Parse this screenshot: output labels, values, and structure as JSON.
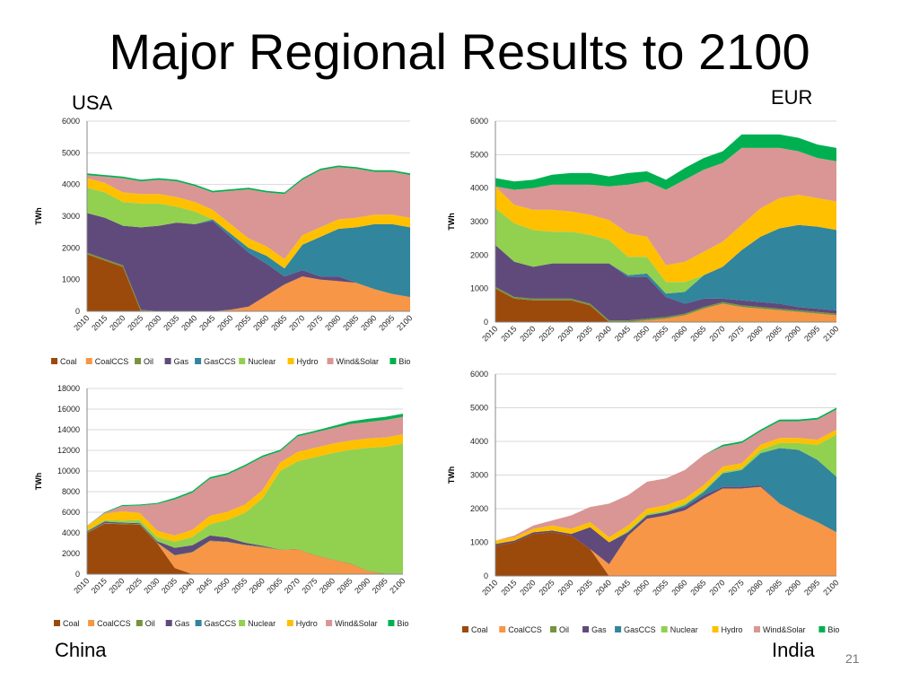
{
  "page": {
    "title": "Major Regional Results to 2100",
    "page_number": "21"
  },
  "chart_data": [
    {
      "region": "USA",
      "type": "area",
      "stacked": true,
      "ylabel": "TWh",
      "ylim": [
        0,
        6000
      ],
      "yticks": [
        0,
        1000,
        2000,
        3000,
        4000,
        5000,
        6000
      ],
      "categories": [
        "2010",
        "2015",
        "2020",
        "2025",
        "2030",
        "2035",
        "2040",
        "2045",
        "2050",
        "2055",
        "2060",
        "2065",
        "2070",
        "2075",
        "2080",
        "2085",
        "2090",
        "2095",
        "2100"
      ],
      "series": [
        {
          "name": "Coal",
          "color": "#9C4A0C",
          "values": [
            1800,
            1600,
            1400,
            0,
            0,
            0,
            0,
            0,
            0,
            0,
            0,
            0,
            0,
            0,
            0,
            0,
            0,
            0,
            0
          ]
        },
        {
          "name": "CoalCCS",
          "color": "#F79646",
          "values": [
            0,
            0,
            0,
            0,
            0,
            0,
            0,
            0,
            50,
            150,
            500,
            850,
            1100,
            1000,
            950,
            900,
            700,
            550,
            450
          ]
        },
        {
          "name": "Oil",
          "color": "#77933C",
          "values": [
            50,
            50,
            50,
            50,
            0,
            0,
            0,
            0,
            0,
            0,
            0,
            0,
            0,
            0,
            0,
            0,
            0,
            0,
            0
          ]
        },
        {
          "name": "Gas",
          "color": "#604A7B",
          "values": [
            1250,
            1300,
            1250,
            2600,
            2700,
            2800,
            2750,
            2850,
            2300,
            1700,
            1000,
            250,
            200,
            100,
            150,
            0,
            0,
            0,
            0
          ]
        },
        {
          "name": "GasCCS",
          "color": "#31859C",
          "values": [
            0,
            0,
            0,
            0,
            0,
            0,
            0,
            50,
            100,
            150,
            250,
            250,
            800,
            1250,
            1500,
            1750,
            2050,
            2200,
            2200
          ]
        },
        {
          "name": "Nuclear",
          "color": "#92D050",
          "values": [
            800,
            800,
            750,
            750,
            700,
            500,
            400,
            0,
            0,
            0,
            0,
            0,
            0,
            0,
            0,
            0,
            0,
            0,
            0
          ]
        },
        {
          "name": "Hydro",
          "color": "#FFC000",
          "values": [
            300,
            300,
            300,
            300,
            300,
            300,
            300,
            300,
            300,
            300,
            300,
            300,
            300,
            300,
            300,
            300,
            300,
            300,
            300
          ]
        },
        {
          "name": "Wind&Solar",
          "color": "#D99694",
          "values": [
            100,
            200,
            450,
            400,
            450,
            500,
            500,
            550,
            1050,
            1550,
            1700,
            2050,
            1750,
            1800,
            1650,
            1550,
            1350,
            1350,
            1350
          ]
        },
        {
          "name": "Bio",
          "color": "#00B050",
          "values": [
            50,
            50,
            50,
            50,
            50,
            50,
            50,
            50,
            50,
            50,
            50,
            50,
            50,
            50,
            50,
            50,
            50,
            50,
            50
          ]
        }
      ]
    },
    {
      "region": "EUR",
      "type": "area",
      "stacked": true,
      "ylabel": "TWh",
      "ylim": [
        0,
        6000
      ],
      "yticks": [
        0,
        1000,
        2000,
        3000,
        4000,
        5000,
        6000
      ],
      "categories": [
        "2010",
        "2015",
        "2020",
        "2025",
        "2030",
        "2035",
        "2040",
        "2045",
        "2050",
        "2055",
        "2060",
        "2065",
        "2070",
        "2075",
        "2080",
        "2085",
        "2090",
        "2095",
        "2100"
      ],
      "series": [
        {
          "name": "Coal",
          "color": "#9C4A0C",
          "values": [
            1000,
            700,
            650,
            650,
            650,
            500,
            0,
            0,
            0,
            0,
            0,
            0,
            0,
            0,
            0,
            0,
            0,
            0,
            0
          ]
        },
        {
          "name": "CoalCCS",
          "color": "#F79646",
          "values": [
            0,
            0,
            0,
            0,
            0,
            0,
            0,
            0,
            50,
            100,
            200,
            400,
            550,
            450,
            400,
            350,
            300,
            250,
            200
          ]
        },
        {
          "name": "Oil",
          "color": "#77933C",
          "values": [
            50,
            50,
            50,
            50,
            50,
            50,
            50,
            50,
            50,
            50,
            50,
            50,
            50,
            50,
            50,
            50,
            50,
            50,
            50
          ]
        },
        {
          "name": "Gas",
          "color": "#604A7B",
          "values": [
            1250,
            1050,
            950,
            1050,
            1050,
            1200,
            1700,
            1300,
            1250,
            600,
            300,
            250,
            100,
            150,
            150,
            150,
            100,
            100,
            100
          ]
        },
        {
          "name": "GasCCS",
          "color": "#31859C",
          "values": [
            0,
            0,
            0,
            0,
            0,
            0,
            0,
            50,
            100,
            100,
            350,
            700,
            950,
            1500,
            1950,
            2250,
            2450,
            2450,
            2400
          ]
        },
        {
          "name": "Nuclear",
          "color": "#92D050",
          "values": [
            1100,
            1150,
            1100,
            950,
            950,
            850,
            700,
            550,
            500,
            350,
            300,
            0,
            0,
            0,
            0,
            0,
            0,
            0,
            0
          ]
        },
        {
          "name": "Hydro",
          "color": "#FFC000",
          "values": [
            650,
            550,
            600,
            650,
            600,
            600,
            600,
            700,
            600,
            500,
            600,
            700,
            750,
            750,
            850,
            900,
            900,
            850,
            850
          ]
        },
        {
          "name": "Wind&Solar",
          "color": "#D99694",
          "values": [
            0,
            450,
            650,
            750,
            800,
            900,
            1000,
            1450,
            1650,
            2250,
            2450,
            2450,
            2350,
            2300,
            1800,
            1500,
            1300,
            1200,
            1200
          ]
        },
        {
          "name": "Bio",
          "color": "#00B050",
          "values": [
            250,
            250,
            250,
            300,
            350,
            350,
            300,
            350,
            300,
            300,
            350,
            350,
            350,
            400,
            400,
            400,
            400,
            400,
            400
          ]
        }
      ]
    },
    {
      "region": "China",
      "type": "area",
      "stacked": true,
      "ylabel": "TWh",
      "ylim": [
        0,
        18000
      ],
      "yticks": [
        0,
        2000,
        4000,
        6000,
        8000,
        10000,
        12000,
        14000,
        16000,
        18000
      ],
      "categories": [
        "2010",
        "2015",
        "2020",
        "2025",
        "2030",
        "2035",
        "2040",
        "2045",
        "2050",
        "2055",
        "2060",
        "2065",
        "2070",
        "2075",
        "2080",
        "2085",
        "2090",
        "2095",
        "2100"
      ],
      "series": [
        {
          "name": "Coal",
          "color": "#9C4A0C",
          "values": [
            4000,
            4900,
            4850,
            4800,
            3000,
            600,
            0,
            0,
            0,
            0,
            0,
            0,
            0,
            0,
            0,
            0,
            0,
            0,
            0
          ]
        },
        {
          "name": "CoalCCS",
          "color": "#F79646",
          "values": [
            0,
            0,
            0,
            0,
            0,
            1200,
            2100,
            3200,
            3100,
            2800,
            2600,
            2350,
            2400,
            1800,
            1400,
            1000,
            300,
            0,
            0
          ]
        },
        {
          "name": "Oil",
          "color": "#77933C",
          "values": [
            50,
            50,
            50,
            50,
            50,
            50,
            50,
            50,
            50,
            50,
            50,
            50,
            50,
            50,
            50,
            50,
            50,
            50,
            50
          ]
        },
        {
          "name": "Gas",
          "color": "#604A7B",
          "values": [
            100,
            150,
            100,
            100,
            150,
            700,
            650,
            500,
            400,
            200,
            100,
            0,
            0,
            0,
            0,
            0,
            0,
            0,
            0
          ]
        },
        {
          "name": "GasCCS",
          "color": "#31859C",
          "values": [
            0,
            0,
            0,
            0,
            0,
            0,
            0,
            0,
            0,
            0,
            0,
            0,
            0,
            0,
            0,
            0,
            0,
            0,
            0
          ]
        },
        {
          "name": "Nuclear",
          "color": "#92D050",
          "values": [
            100,
            150,
            200,
            300,
            400,
            600,
            800,
            1100,
            1700,
            2900,
            4600,
            7600,
            8500,
            9500,
            10300,
            11000,
            11900,
            12300,
            12600
          ]
        },
        {
          "name": "Hydro",
          "color": "#FFC000",
          "values": [
            400,
            600,
            900,
            700,
            600,
            600,
            700,
            800,
            800,
            800,
            800,
            800,
            900,
            900,
            900,
            900,
            900,
            900,
            900
          ]
        },
        {
          "name": "Wind&Solar",
          "color": "#D99694",
          "values": [
            50,
            100,
            500,
            700,
            2600,
            3500,
            3600,
            3600,
            3600,
            3700,
            3200,
            1100,
            1500,
            1500,
            1500,
            1600,
            1600,
            1700,
            1700
          ]
        },
        {
          "name": "Bio",
          "color": "#00B050",
          "values": [
            0,
            50,
            100,
            100,
            100,
            150,
            150,
            150,
            150,
            150,
            150,
            150,
            150,
            150,
            200,
            250,
            300,
            300,
            300
          ]
        }
      ]
    },
    {
      "region": "India",
      "type": "area",
      "stacked": true,
      "ylabel": "TWh",
      "ylim": [
        0,
        6000
      ],
      "yticks": [
        0,
        1000,
        2000,
        3000,
        4000,
        5000,
        6000
      ],
      "categories": [
        "2010",
        "2015",
        "2020",
        "2025",
        "2030",
        "2035",
        "2040",
        "2045",
        "2050",
        "2055",
        "2060",
        "2065",
        "2070",
        "2075",
        "2080",
        "2085",
        "2090",
        "2095",
        "2100"
      ],
      "series": [
        {
          "name": "Coal",
          "color": "#9C4A0C",
          "values": [
            900,
            1000,
            1250,
            1300,
            1200,
            800,
            0,
            0,
            0,
            0,
            0,
            0,
            0,
            0,
            0,
            0,
            0,
            0,
            0
          ]
        },
        {
          "name": "CoalCCS",
          "color": "#F79646",
          "values": [
            0,
            0,
            0,
            0,
            0,
            0,
            350,
            1200,
            1700,
            1800,
            1950,
            2300,
            2600,
            2600,
            2650,
            2150,
            1850,
            1600,
            1300
          ]
        },
        {
          "name": "Oil",
          "color": "#77933C",
          "values": [
            0,
            0,
            0,
            0,
            0,
            0,
            0,
            0,
            0,
            0,
            0,
            0,
            0,
            0,
            0,
            0,
            0,
            0,
            0
          ]
        },
        {
          "name": "Gas",
          "color": "#604A7B",
          "values": [
            50,
            50,
            50,
            50,
            50,
            650,
            650,
            100,
            100,
            100,
            100,
            100,
            50,
            50,
            50,
            0,
            0,
            0,
            0
          ]
        },
        {
          "name": "GasCCS",
          "color": "#31859C",
          "values": [
            0,
            0,
            0,
            0,
            0,
            0,
            0,
            0,
            0,
            0,
            50,
            100,
            400,
            500,
            950,
            1650,
            1900,
            1850,
            1650
          ]
        },
        {
          "name": "Nuclear",
          "color": "#92D050",
          "values": [
            0,
            0,
            0,
            0,
            0,
            0,
            0,
            50,
            50,
            50,
            50,
            50,
            50,
            50,
            100,
            150,
            200,
            450,
            1250
          ]
        },
        {
          "name": "Hydro",
          "color": "#FFC000",
          "values": [
            100,
            100,
            100,
            150,
            150,
            150,
            150,
            150,
            150,
            150,
            150,
            150,
            150,
            150,
            150,
            150,
            150,
            150,
            150
          ]
        },
        {
          "name": "Wind&Solar",
          "color": "#D99694",
          "values": [
            0,
            50,
            100,
            150,
            400,
            450,
            1000,
            900,
            800,
            800,
            850,
            900,
            600,
            600,
            400,
            500,
            500,
            600,
            600
          ]
        },
        {
          "name": "Bio",
          "color": "#00B050",
          "values": [
            0,
            0,
            0,
            0,
            0,
            0,
            0,
            0,
            0,
            0,
            0,
            0,
            50,
            50,
            50,
            50,
            50,
            50,
            50
          ]
        }
      ]
    }
  ]
}
